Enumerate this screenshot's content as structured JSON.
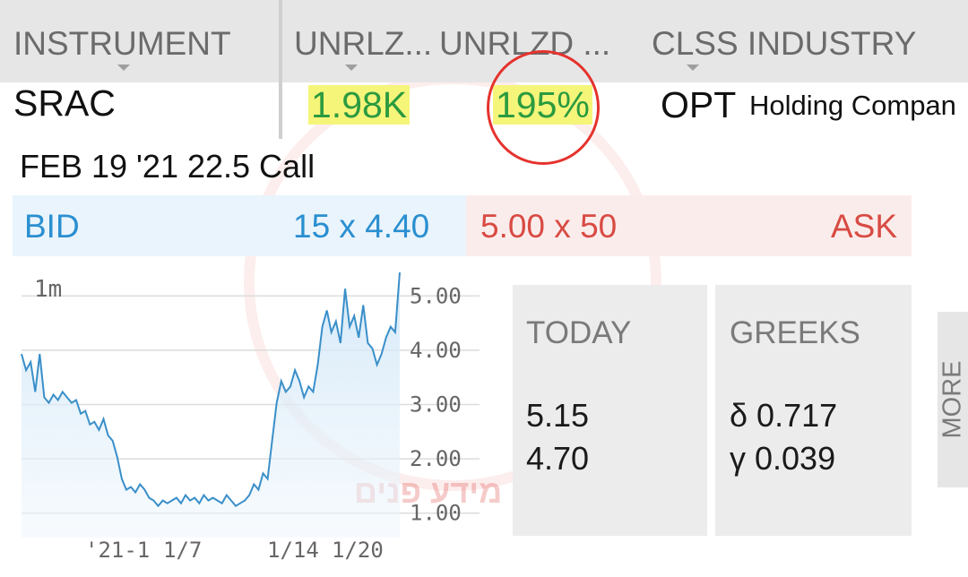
{
  "header": {
    "columns": [
      "INSTRUMENT",
      "UNRLZ...",
      "UNRLZD ...",
      "CLSS INDUSTRY"
    ]
  },
  "position": {
    "symbol": "SRAC",
    "unrealized": "1.98K",
    "unrealized_pct": "195%",
    "class": "OPT",
    "industry": "Holding Compan"
  },
  "contract": "FEB 19 '21 22.5 Call",
  "quote": {
    "bid_label": "BID",
    "bid": "15 x 4.40",
    "ask": "5.00 x 50",
    "ask_label": "ASK"
  },
  "chart_data": {
    "type": "area",
    "timeframe_label": "1m",
    "x_tick_labels": [
      "'21-1",
      "1/7",
      "1/14",
      "1/20"
    ],
    "y_tick_labels": [
      "5.00",
      "4.00",
      "3.00",
      "2.00",
      "1.00"
    ],
    "ylim": [
      0.5,
      5.5
    ],
    "grid": true,
    "values": [
      3.8,
      3.5,
      3.65,
      3.1,
      3.8,
      3.0,
      2.9,
      3.05,
      2.95,
      3.1,
      3.0,
      2.9,
      2.95,
      2.7,
      2.75,
      2.5,
      2.55,
      2.4,
      2.6,
      2.3,
      2.2,
      1.9,
      1.5,
      1.3,
      1.35,
      1.25,
      1.4,
      1.3,
      1.15,
      1.1,
      1.0,
      1.1,
      1.05,
      1.1,
      1.15,
      1.05,
      1.2,
      1.1,
      1.15,
      1.05,
      1.2,
      1.1,
      1.15,
      1.1,
      1.05,
      1.2,
      1.1,
      1.0,
      1.05,
      1.1,
      1.2,
      1.4,
      1.3,
      1.6,
      1.5,
      2.2,
      2.9,
      3.3,
      3.1,
      3.2,
      3.5,
      3.3,
      3.0,
      3.2,
      3.1,
      3.6,
      4.3,
      4.6,
      4.2,
      4.4,
      4.0,
      5.0,
      4.3,
      4.5,
      4.1,
      4.7,
      4.0,
      3.9,
      3.6,
      3.8,
      4.1,
      4.3,
      4.2,
      5.3
    ]
  },
  "today": {
    "title": "TODAY",
    "high": "5.15",
    "low": "4.70"
  },
  "greeks": {
    "title": "GREEKS",
    "delta": "δ 0.717",
    "gamma": "γ 0.039"
  },
  "more_label": "MORE",
  "watermark": "מידע פנים",
  "colors": {
    "highlight": "#f5f57a",
    "gain": "#2b9b3f",
    "bid": "#2a8fd0",
    "ask": "#d84b43",
    "annotation": "#e5322d",
    "chart_line": "#3a8fc9"
  }
}
